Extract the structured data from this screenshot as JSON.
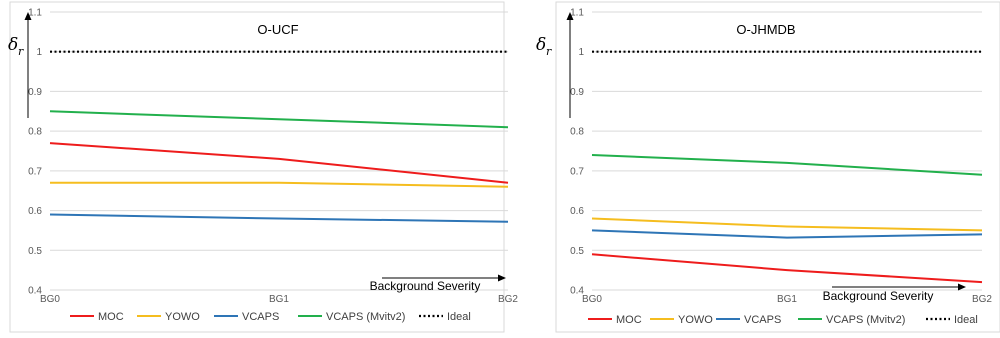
{
  "colors": {
    "MOC": "#ee1c1c",
    "YOWO": "#f5bd1f",
    "VCAPS": "#2e75b6",
    "VCAPS (Mvitv2)": "#22b04c",
    "Ideal": "#000000"
  },
  "chart_data": [
    {
      "type": "line",
      "title": "O-UCF",
      "ylabel_symbol": "δ",
      "ylabel_subscript": "r",
      "xaxis_annotation": "Background Severity",
      "categories": [
        "BG0",
        "BG1",
        "BG2"
      ],
      "ylim": [
        0.4,
        1.1
      ],
      "yticks": [
        "0.4",
        "0.5",
        "0.6",
        "0.7",
        "0.8",
        "0.9",
        "1",
        "1.1"
      ],
      "grid": true,
      "legend_position": "bottom",
      "series": [
        {
          "name": "MOC",
          "values": [
            0.77,
            0.73,
            0.67
          ]
        },
        {
          "name": "YOWO",
          "values": [
            0.67,
            0.67,
            0.66
          ]
        },
        {
          "name": "VCAPS",
          "values": [
            0.59,
            0.58,
            0.572
          ]
        },
        {
          "name": "VCAPS (Mvitv2)",
          "values": [
            0.85,
            0.83,
            0.81
          ]
        },
        {
          "name": "Ideal",
          "values": [
            1,
            1,
            1
          ],
          "style": "dotted"
        }
      ]
    },
    {
      "type": "line",
      "title": "O-JHMDB",
      "ylabel_symbol": "δ",
      "ylabel_subscript": "r",
      "xaxis_annotation": "Background Severity",
      "categories": [
        "BG0",
        "BG1",
        "BG2"
      ],
      "ylim": [
        0.4,
        1.1
      ],
      "yticks": [
        "0.4",
        "0.5",
        "0.6",
        "0.7",
        "0.8",
        "0.9",
        "1",
        "1.1"
      ],
      "grid": true,
      "legend_position": "bottom",
      "series": [
        {
          "name": "MOC",
          "values": [
            0.49,
            0.45,
            0.42
          ]
        },
        {
          "name": "YOWO",
          "values": [
            0.58,
            0.56,
            0.55
          ]
        },
        {
          "name": "VCAPS",
          "values": [
            0.55,
            0.532,
            0.54
          ]
        },
        {
          "name": "VCAPS (Mvitv2)",
          "values": [
            0.74,
            0.72,
            0.69
          ]
        },
        {
          "name": "Ideal",
          "values": [
            1,
            1,
            1
          ],
          "style": "dotted"
        }
      ]
    }
  ]
}
